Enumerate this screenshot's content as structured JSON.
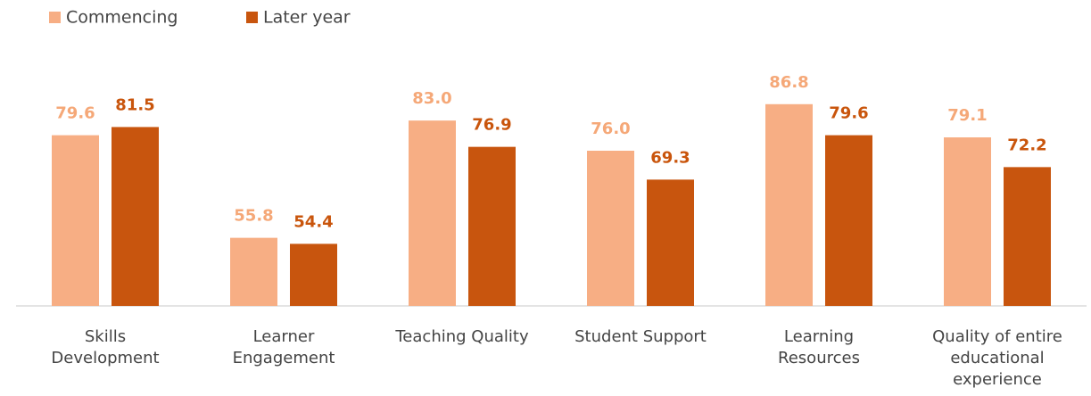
{
  "chart_data": {
    "type": "bar",
    "categories": [
      "Skills\nDevelopment",
      "Learner\nEngagement",
      "Teaching Quality",
      "Student Support",
      "Learning\nResources",
      "Quality of entire\neducational\nexperience"
    ],
    "series": [
      {
        "name": "Commencing",
        "color": "#f7ae84",
        "label_color": "#f5a878",
        "values": [
          79.6,
          55.8,
          83,
          76,
          86.8,
          79.1
        ],
        "value_labels": [
          "79.6",
          "55.8",
          "83.0",
          "76.0",
          "86.8",
          "79.1"
        ]
      },
      {
        "name": "Later year",
        "color": "#c8550e",
        "label_color": "#c9550c",
        "values": [
          81.5,
          54.4,
          76.9,
          69.3,
          79.6,
          72.2
        ],
        "value_labels": [
          "81.5",
          "54.4",
          "76.9",
          "69.3",
          "79.6",
          "72.2"
        ]
      }
    ],
    "ylim": [
      40,
      100
    ],
    "legend": "top-left"
  }
}
